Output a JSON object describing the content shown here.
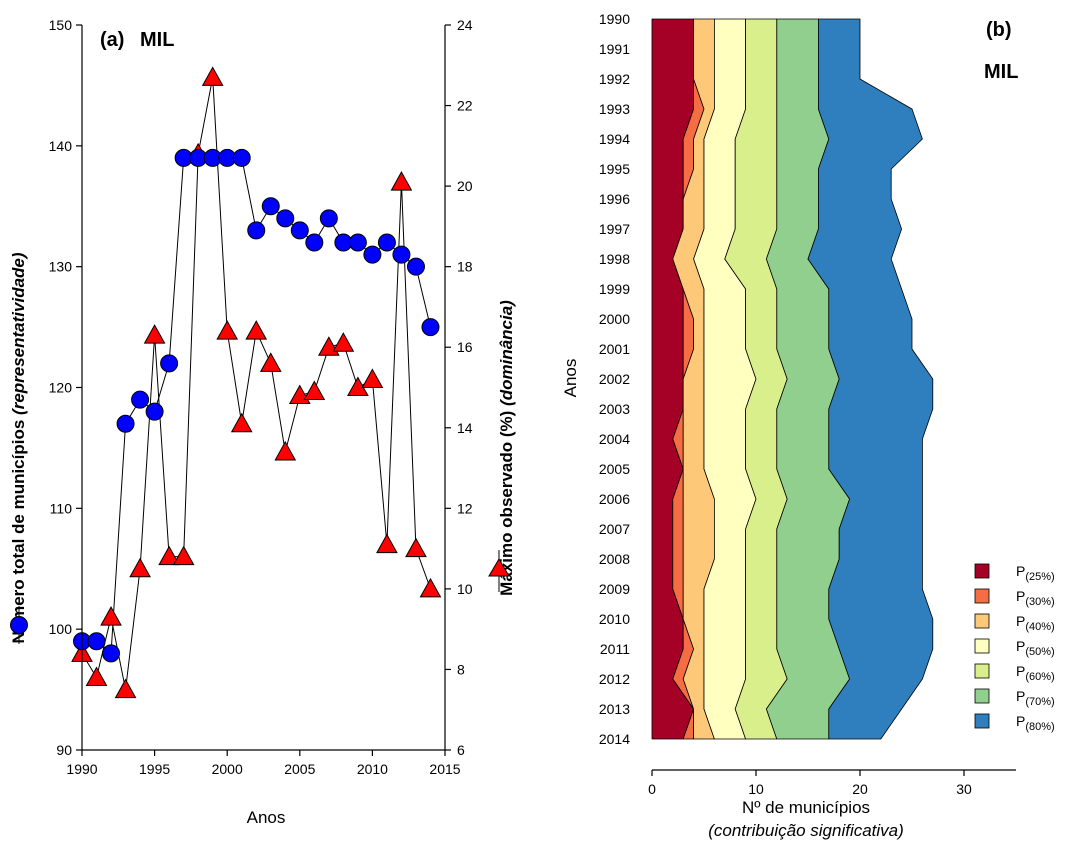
{
  "chart_data": [
    {
      "type": "line",
      "panel_label": "(a)",
      "panel_name": "MIL",
      "xlabel": "Anos",
      "ylabel": "Número total de municípios",
      "ylabel_italic": "(representatividade)",
      "y2label": "Máximo observado (%)",
      "y2label_italic": "(dominância)",
      "xlim": [
        1990,
        2015
      ],
      "ylim": [
        90,
        150
      ],
      "y2lim": [
        6,
        24
      ],
      "xticks": [
        1990,
        1995,
        2000,
        2005,
        2010,
        2015
      ],
      "yticks": [
        90,
        100,
        110,
        120,
        130,
        140,
        150
      ],
      "y2ticks": [
        6,
        8,
        10,
        12,
        14,
        16,
        18,
        20,
        22,
        24
      ],
      "series": [
        {
          "axis": "left",
          "marker": "circle",
          "color": "#0000ff",
          "x": [
            1990,
            1991,
            1992,
            1993,
            1994,
            1995,
            1996,
            1997,
            1998,
            1999,
            2000,
            2001,
            2002,
            2003,
            2004,
            2005,
            2006,
            2007,
            2008,
            2009,
            2010,
            2011,
            2012,
            2013,
            2014
          ],
          "y": [
            99,
            99,
            98,
            117,
            119,
            118,
            122,
            139,
            139,
            139,
            139,
            139,
            133,
            135,
            134,
            133,
            132,
            134,
            132,
            132,
            131,
            132,
            131,
            130,
            125
          ]
        },
        {
          "axis": "right",
          "marker": "triangle",
          "color": "#ff0000",
          "x": [
            1990,
            1991,
            1992,
            1993,
            1994,
            1995,
            1996,
            1997,
            1998,
            1999,
            2000,
            2001,
            2002,
            2003,
            2004,
            2005,
            2006,
            2007,
            2008,
            2009,
            2010,
            2011,
            2012,
            2013,
            2014
          ],
          "y": [
            8.4,
            7.8,
            9.3,
            7.5,
            10.5,
            16.3,
            10.8,
            10.8,
            20.8,
            22.7,
            16.4,
            14.1,
            16.4,
            15.6,
            13.4,
            14.8,
            14.9,
            16.0,
            16.1,
            15.0,
            15.2,
            11.1,
            20.1,
            11.0,
            10.0
          ]
        }
      ]
    },
    {
      "type": "area",
      "orientation": "horizontal-stacked",
      "panel_label": "(b)",
      "panel_name": "MIL",
      "ylabel": "Anos",
      "xlabel": "Nº de municípios",
      "xlabel_italic": "(contribuição significativa)",
      "xlim": [
        0,
        35
      ],
      "xticks": [
        0,
        10,
        20,
        30
      ],
      "categories": [
        "1990",
        "1991",
        "1992",
        "1993",
        "1994",
        "1995",
        "1996",
        "1997",
        "1998",
        "1999",
        "2000",
        "2001",
        "2002",
        "2003",
        "2004",
        "2005",
        "2006",
        "2007",
        "2008",
        "2009",
        "2010",
        "2011",
        "2012",
        "2013",
        "2014"
      ],
      "series": [
        {
          "name": "P(25%)",
          "label_main": "P",
          "label_sub": "(25%)",
          "color": "#a50026",
          "values": [
            4,
            4,
            4,
            4,
            3,
            3,
            3,
            3,
            2,
            3,
            3,
            3,
            3,
            3,
            2,
            3,
            2,
            2,
            2,
            2,
            3,
            3,
            2,
            4,
            3
          ]
        },
        {
          "name": "P(30%)",
          "label_main": "P",
          "label_sub": "(30%)",
          "color": "#f46d43",
          "values": [
            0,
            0,
            0,
            1,
            1,
            1,
            0,
            0,
            0,
            0,
            1,
            1,
            0,
            0,
            1,
            0,
            1,
            1,
            1,
            1,
            0,
            1,
            1,
            0,
            1
          ]
        },
        {
          "name": "P(40%)",
          "label_main": "P",
          "label_sub": "(40%)",
          "color": "#fdc979",
          "values": [
            2,
            2,
            2,
            1,
            1,
            1,
            2,
            2,
            2,
            2,
            1,
            1,
            2,
            2,
            2,
            2,
            3,
            3,
            3,
            2,
            2,
            1,
            2,
            1,
            2
          ]
        },
        {
          "name": "P(50%)",
          "label_main": "P",
          "label_sub": "(50%)",
          "color": "#ffffbf",
          "values": [
            3,
            3,
            3,
            3,
            3,
            3,
            3,
            3,
            3,
            4,
            4,
            4,
            5,
            4,
            4,
            4,
            4,
            3,
            3,
            4,
            4,
            4,
            4,
            3,
            3
          ]
        },
        {
          "name": "P(60%)",
          "label_main": "P",
          "label_sub": "(60%)",
          "color": "#d9ef8b",
          "values": [
            3,
            3,
            3,
            3,
            4,
            4,
            4,
            4,
            4,
            3,
            3,
            3,
            3,
            3,
            3,
            3,
            3,
            3,
            3,
            3,
            3,
            3,
            4,
            3,
            3
          ]
        },
        {
          "name": "P(70%)",
          "label_main": "P",
          "label_sub": "(70%)",
          "color": "#91cf8f",
          "values": [
            4,
            4,
            4,
            4,
            5,
            4,
            4,
            4,
            4,
            5,
            5,
            5,
            5,
            5,
            5,
            5,
            6,
            6,
            6,
            5,
            5,
            6,
            6,
            6,
            5
          ]
        },
        {
          "name": "P(80%)",
          "label_main": "P",
          "label_sub": "(80%)",
          "color": "#2f7fbf",
          "values": [
            4,
            4,
            4,
            9,
            9,
            7,
            7,
            8,
            8,
            7,
            8,
            8,
            9,
            10,
            9,
            9,
            7,
            8,
            8,
            9,
            10,
            9,
            7,
            7,
            5
          ]
        }
      ]
    }
  ]
}
